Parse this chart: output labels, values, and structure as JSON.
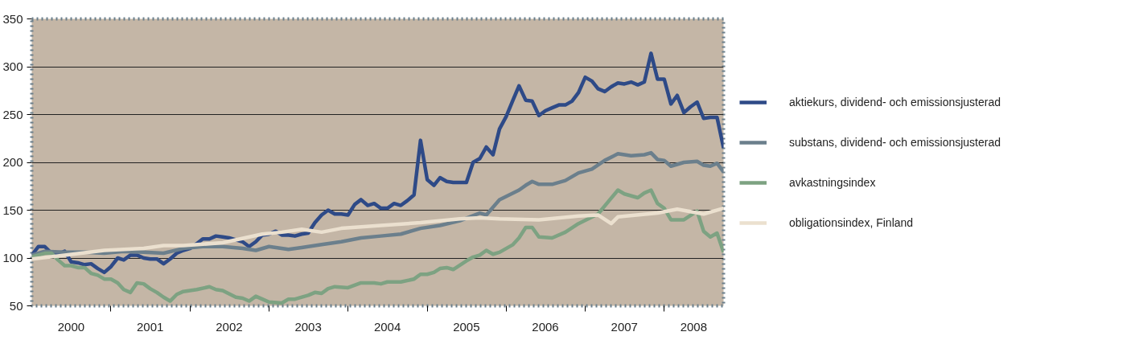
{
  "chart_data": {
    "type": "line",
    "xlim": [
      "2000-01",
      "2008-10"
    ],
    "ylim": [
      50,
      350
    ],
    "yticks": [
      50,
      100,
      150,
      200,
      250,
      300,
      350
    ],
    "xticks": [
      {
        "value": "2000-07",
        "label": "2000"
      },
      {
        "value": "2001-07",
        "label": "2001"
      },
      {
        "value": "2002-07",
        "label": "2002"
      },
      {
        "value": "2003-07",
        "label": "2003"
      },
      {
        "value": "2004-07",
        "label": "2004"
      },
      {
        "value": "2005-07",
        "label": "2005"
      },
      {
        "value": "2006-07",
        "label": "2006"
      },
      {
        "value": "2007-07",
        "label": "2007"
      },
      {
        "value": "2008-05-16",
        "label": "2008"
      },
      {
        "value": "2001-01",
        "label": null
      },
      {
        "value": "2002-01",
        "label": null
      },
      {
        "value": "2003-01",
        "label": null
      },
      {
        "value": "2004-01",
        "label": null
      },
      {
        "value": "2005-01",
        "label": null
      },
      {
        "value": "2006-01",
        "label": null
      },
      {
        "value": "2007-01",
        "label": null
      },
      {
        "value": "2008-01",
        "label": null
      }
    ],
    "grid": "y",
    "legend": "right",
    "line_style": "solid",
    "series": [
      {
        "name": "aktiekurs, dividend- och emissionsjusterad",
        "color": "#2e4a87",
        "x": [
          "2000-01",
          "2000-02",
          "2000-03",
          "2000-04",
          "2000-05",
          "2000-06",
          "2000-07",
          "2000-08",
          "2000-09",
          "2000-10",
          "2000-11",
          "2000-12",
          "2001-01",
          "2001-02",
          "2001-03",
          "2001-04",
          "2001-05",
          "2001-06",
          "2001-07",
          "2001-08",
          "2001-09",
          "2001-10",
          "2001-11",
          "2001-12",
          "2002-01",
          "2002-02",
          "2002-03",
          "2002-04",
          "2002-05",
          "2002-06",
          "2002-07",
          "2002-08",
          "2002-09",
          "2002-10",
          "2002-11",
          "2002-12",
          "2003-01",
          "2003-02",
          "2003-03",
          "2003-04",
          "2003-05",
          "2003-06",
          "2003-07",
          "2003-08",
          "2003-09",
          "2003-10",
          "2003-11",
          "2003-12",
          "2004-01",
          "2004-02",
          "2004-03",
          "2004-04",
          "2004-05",
          "2004-06",
          "2004-07",
          "2004-08",
          "2004-09",
          "2004-10",
          "2004-11",
          "2004-12",
          "2005-01",
          "2005-02",
          "2005-03",
          "2005-04",
          "2005-05",
          "2005-06",
          "2005-07",
          "2005-08",
          "2005-09",
          "2005-10",
          "2005-11",
          "2005-12",
          "2006-01",
          "2006-02",
          "2006-03",
          "2006-04",
          "2006-05",
          "2006-06",
          "2006-07",
          "2006-08",
          "2006-09",
          "2006-10",
          "2006-11",
          "2006-12",
          "2007-01",
          "2007-02",
          "2007-03",
          "2007-04",
          "2007-05",
          "2007-06",
          "2007-07",
          "2007-08",
          "2007-09",
          "2007-10",
          "2007-11",
          "2007-12",
          "2008-01",
          "2008-02",
          "2008-03",
          "2008-04",
          "2008-05",
          "2008-06",
          "2008-07",
          "2008-08",
          "2008-09",
          "2008-10"
        ],
        "values": [
          103,
          112,
          112,
          105,
          104,
          107,
          96,
          95,
          93,
          94,
          89,
          85,
          91,
          100,
          98,
          103,
          103,
          100,
          99,
          99,
          94,
          99,
          105,
          108,
          110,
          115,
          120,
          120,
          123,
          122,
          121,
          119,
          117,
          112,
          117,
          124,
          125,
          128,
          124,
          124,
          123,
          125,
          126,
          137,
          145,
          150,
          146,
          146,
          145,
          156,
          161,
          155,
          157,
          152,
          152,
          157,
          155,
          160,
          166,
          223,
          182,
          176,
          184,
          180,
          179,
          179,
          179,
          200,
          204,
          216,
          208,
          235,
          248,
          265,
          280,
          265,
          264,
          249,
          254,
          257,
          260,
          260,
          264,
          273,
          289,
          285,
          277,
          274,
          279,
          283,
          282,
          284,
          281,
          284,
          314,
          287,
          287,
          261,
          270,
          252,
          258,
          263,
          246,
          247,
          247,
          215
        ]
      },
      {
        "name": "substans, dividend- och emissionsjusterad",
        "color": "#6b7f8c",
        "x": [
          "2000-01",
          "2000-03",
          "2000-06",
          "2000-09",
          "2000-12",
          "2001-03",
          "2001-06",
          "2001-09",
          "2001-12",
          "2002-03",
          "2002-06",
          "2002-09",
          "2002-11",
          "2003-01",
          "2003-04",
          "2003-06",
          "2003-09",
          "2003-12",
          "2004-03",
          "2004-06",
          "2004-09",
          "2004-12",
          "2005-03",
          "2005-06",
          "2005-09",
          "2005-10",
          "2005-12",
          "2006-03",
          "2006-04",
          "2006-05",
          "2006-06",
          "2006-08",
          "2006-10",
          "2006-12",
          "2007-02",
          "2007-04",
          "2007-06",
          "2007-08",
          "2007-10",
          "2007-11",
          "2007-12",
          "2008-01",
          "2008-02",
          "2008-04",
          "2008-06",
          "2008-07",
          "2008-08",
          "2008-09",
          "2008-10"
        ],
        "values": [
          103,
          107,
          106,
          106,
          105,
          107,
          106,
          105,
          110,
          112,
          112,
          110,
          108,
          112,
          109,
          111,
          114,
          117,
          121,
          123,
          125,
          131,
          134,
          139,
          147,
          145,
          161,
          171,
          176,
          180,
          177,
          177,
          181,
          189,
          193,
          202,
          209,
          207,
          208,
          210,
          203,
          202,
          196,
          200,
          201,
          197,
          196,
          199,
          190
        ]
      },
      {
        "name": "avkastningsindex",
        "color": "#7da282",
        "x": [
          "2000-01",
          "2000-03",
          "2000-04",
          "2000-05",
          "2000-06",
          "2000-07",
          "2000-08",
          "2000-09",
          "2000-10",
          "2000-11",
          "2000-12",
          "2001-01",
          "2001-02",
          "2001-03",
          "2001-04",
          "2001-05",
          "2001-06",
          "2001-07",
          "2001-08",
          "2001-09",
          "2001-10",
          "2001-11",
          "2001-12",
          "2002-02",
          "2002-04",
          "2002-05",
          "2002-06",
          "2002-08",
          "2002-09",
          "2002-10",
          "2002-11",
          "2002-12",
          "2003-01",
          "2003-03",
          "2003-04",
          "2003-05",
          "2003-07",
          "2003-08",
          "2003-09",
          "2003-10",
          "2003-11",
          "2004-01",
          "2004-03",
          "2004-05",
          "2004-06",
          "2004-07",
          "2004-09",
          "2004-11",
          "2004-12",
          "2005-01",
          "2005-02",
          "2005-03",
          "2005-04",
          "2005-05",
          "2005-07",
          "2005-08",
          "2005-09",
          "2005-10",
          "2005-11",
          "2005-12",
          "2006-02",
          "2006-03",
          "2006-04",
          "2006-05",
          "2006-06",
          "2006-08",
          "2006-10",
          "2006-12",
          "2007-03",
          "2007-06",
          "2007-07",
          "2007-09",
          "2007-10",
          "2007-11",
          "2007-12",
          "2008-01",
          "2008-02",
          "2008-04",
          "2008-06",
          "2008-07",
          "2008-08",
          "2008-09",
          "2008-10"
        ],
        "values": [
          101,
          105,
          105,
          98,
          92,
          92,
          90,
          90,
          84,
          82,
          78,
          78,
          74,
          67,
          64,
          74,
          73,
          68,
          64,
          59,
          55,
          62,
          65,
          67,
          70,
          67,
          66,
          59,
          58,
          55,
          60,
          57,
          54,
          53,
          57,
          57,
          61,
          64,
          63,
          68,
          70,
          69,
          74,
          74,
          73,
          75,
          75,
          78,
          83,
          83,
          85,
          89,
          90,
          88,
          97,
          101,
          103,
          108,
          104,
          106,
          114,
          121,
          132,
          132,
          122,
          121,
          127,
          136,
          146,
          171,
          167,
          163,
          168,
          171,
          157,
          152,
          140,
          140,
          149,
          128,
          122,
          126,
          106
        ]
      },
      {
        "name": "obligationsindex, Finland",
        "color": "#ebe0cf",
        "x": [
          "2000-01",
          "2000-06",
          "2000-12",
          "2001-06",
          "2001-09",
          "2001-12",
          "2002-06",
          "2002-12",
          "2003-03",
          "2003-06",
          "2003-09",
          "2003-12",
          "2004-06",
          "2004-12",
          "2005-06",
          "2005-09",
          "2005-12",
          "2006-06",
          "2006-12",
          "2007-03",
          "2007-05",
          "2007-06",
          "2007-12",
          "2008-03",
          "2008-07",
          "2008-10"
        ],
        "values": [
          99,
          103,
          108,
          110,
          113,
          113,
          116,
          125,
          127,
          130,
          127,
          131,
          134,
          137,
          141,
          142,
          141,
          140,
          144,
          145,
          136,
          143,
          147,
          151,
          146,
          152
        ]
      }
    ]
  }
}
